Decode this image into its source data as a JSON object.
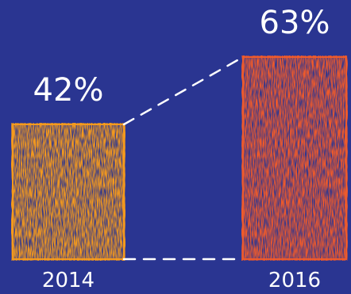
{
  "chart_data": {
    "type": "bar",
    "categories": [
      "2014",
      "2016"
    ],
    "values": [
      42,
      63
    ],
    "value_labels": [
      "42%",
      "63%"
    ],
    "ylim": [
      0,
      63
    ],
    "grid": false,
    "colors": {
      "background": "#2a3591",
      "bars": [
        "#f59a1c",
        "#ee5a2c"
      ],
      "stroke": "#ffffff"
    }
  }
}
